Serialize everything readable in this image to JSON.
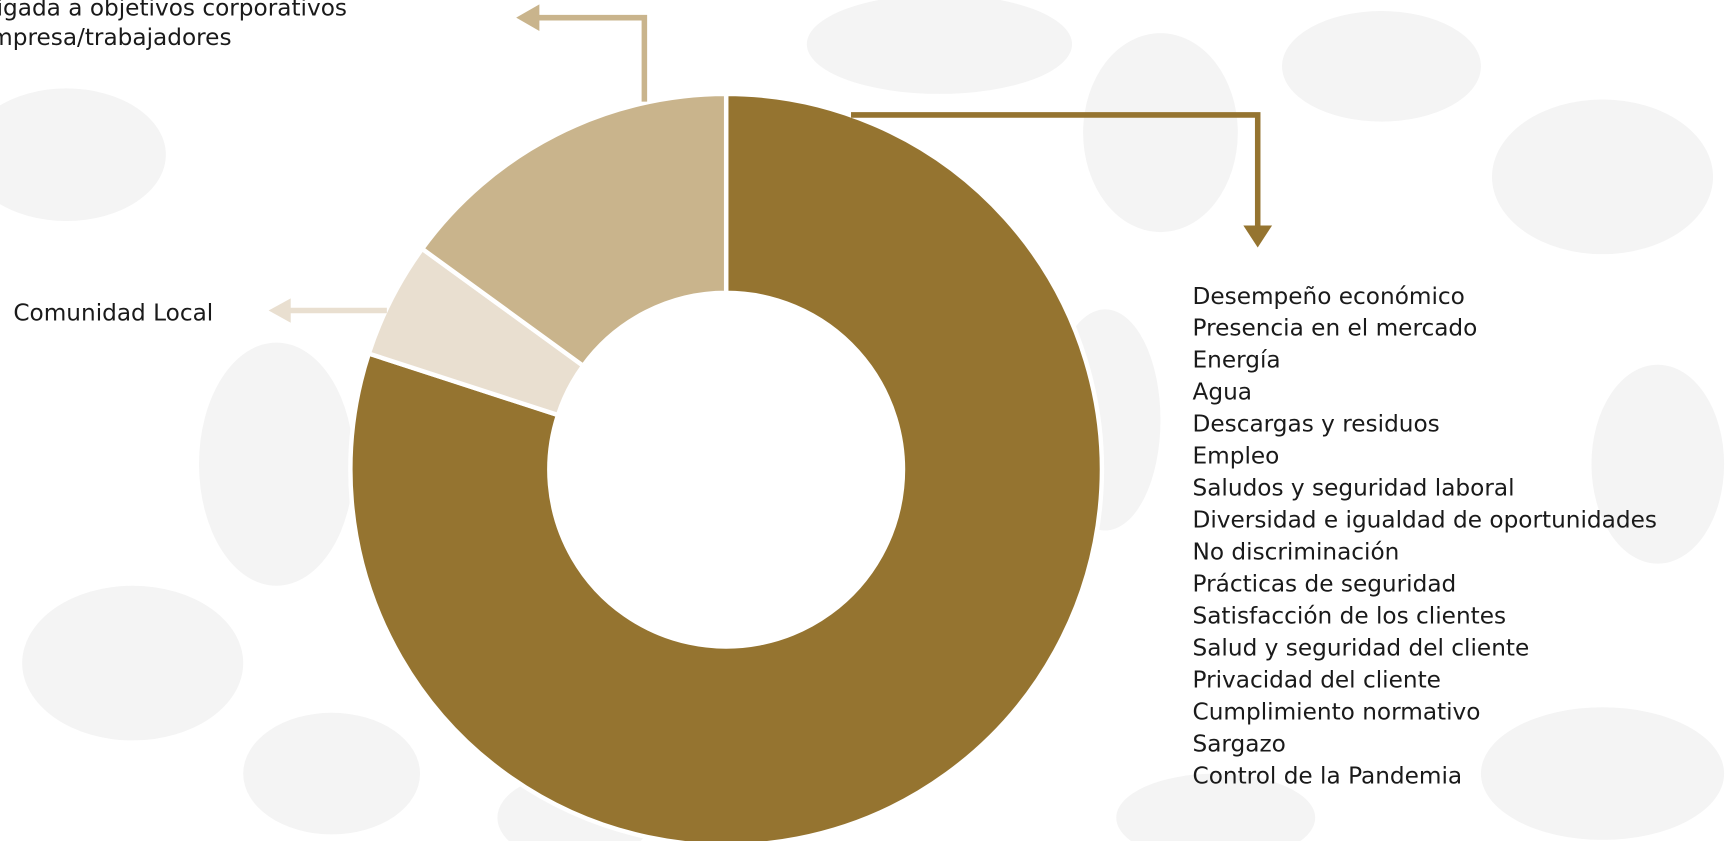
{
  "chart_data": {
    "type": "pie",
    "donut": true,
    "segments": [
      {
        "value": 80,
        "color": "#957430",
        "labels": [
          "Desempeño económico",
          "Presencia en el mercado",
          "Energía",
          "Agua",
          "Descargas y residuos",
          "Empleo",
          "Saludos y seguridad laboral",
          "Diversidad e igualdad de oportunidades",
          "No discriminación",
          "Prácticas de seguridad",
          "Satisfacción de los clientes",
          "Salud y seguridad del cliente",
          "Privacidad del cliente",
          "Cumplimiento normativo",
          "Sargazo",
          "Control de la Pandemia"
        ]
      },
      {
        "value": 5,
        "color": "#e9dfd0",
        "labels": [
          "Comunidad Local"
        ]
      },
      {
        "value": 15,
        "color": "#c9b48c",
        "labels": [
          "ligada a objetivos corporativos",
          "mpresa/trabajadores"
        ]
      }
    ]
  }
}
